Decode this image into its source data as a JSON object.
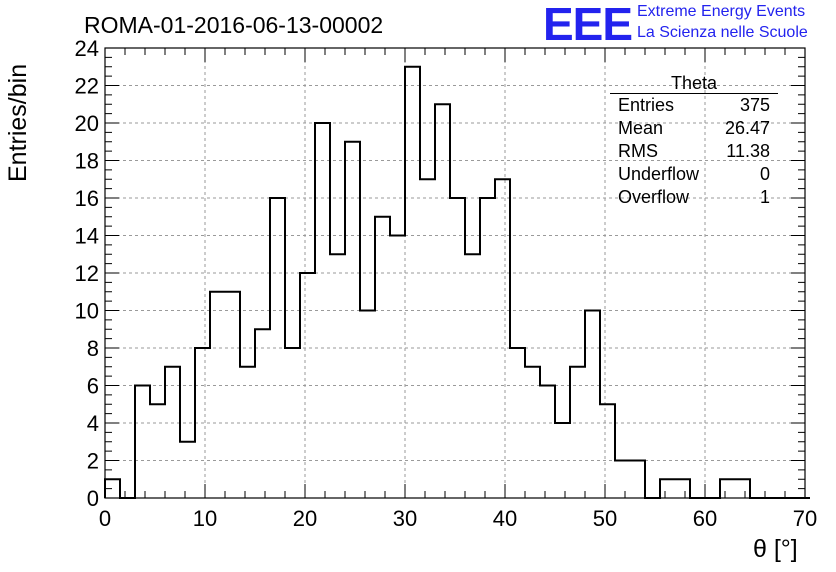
{
  "logo": {
    "mark": "EEE",
    "line1": "Extreme Energy Events",
    "line2": "La Scienza nelle Scuole"
  },
  "stats": {
    "title": "Theta",
    "rows": [
      {
        "label": "Entries",
        "value": "375"
      },
      {
        "label": "Mean",
        "value": "26.47"
      },
      {
        "label": "RMS",
        "value": "11.38"
      },
      {
        "label": "Underflow",
        "value": "0"
      },
      {
        "label": "Overflow",
        "value": "1"
      }
    ]
  },
  "chart_data": {
    "type": "histogram",
    "title": "ROMA-01-2016-06-13-00002",
    "xlabel": "θ [°]",
    "ylabel": "Entries/bin",
    "xlim": [
      0,
      70
    ],
    "ylim": [
      0,
      24
    ],
    "bin_width": 1.5,
    "x_ticks": [
      "0",
      "10",
      "20",
      "30",
      "40",
      "50",
      "60",
      "70"
    ],
    "y_ticks": [
      "0",
      "2",
      "4",
      "6",
      "8",
      "10",
      "12",
      "14",
      "16",
      "18",
      "20",
      "22",
      "24"
    ],
    "grid": true,
    "values": [
      1,
      0,
      6,
      5,
      7,
      3,
      8,
      11,
      11,
      7,
      9,
      16,
      8,
      12,
      20,
      13,
      19,
      10,
      15,
      14,
      23,
      17,
      21,
      16,
      13,
      16,
      17,
      8,
      7,
      6,
      4,
      7,
      10,
      5,
      2,
      2,
      0,
      1,
      1,
      0,
      0,
      1,
      1,
      0,
      0,
      0,
      0
    ]
  }
}
